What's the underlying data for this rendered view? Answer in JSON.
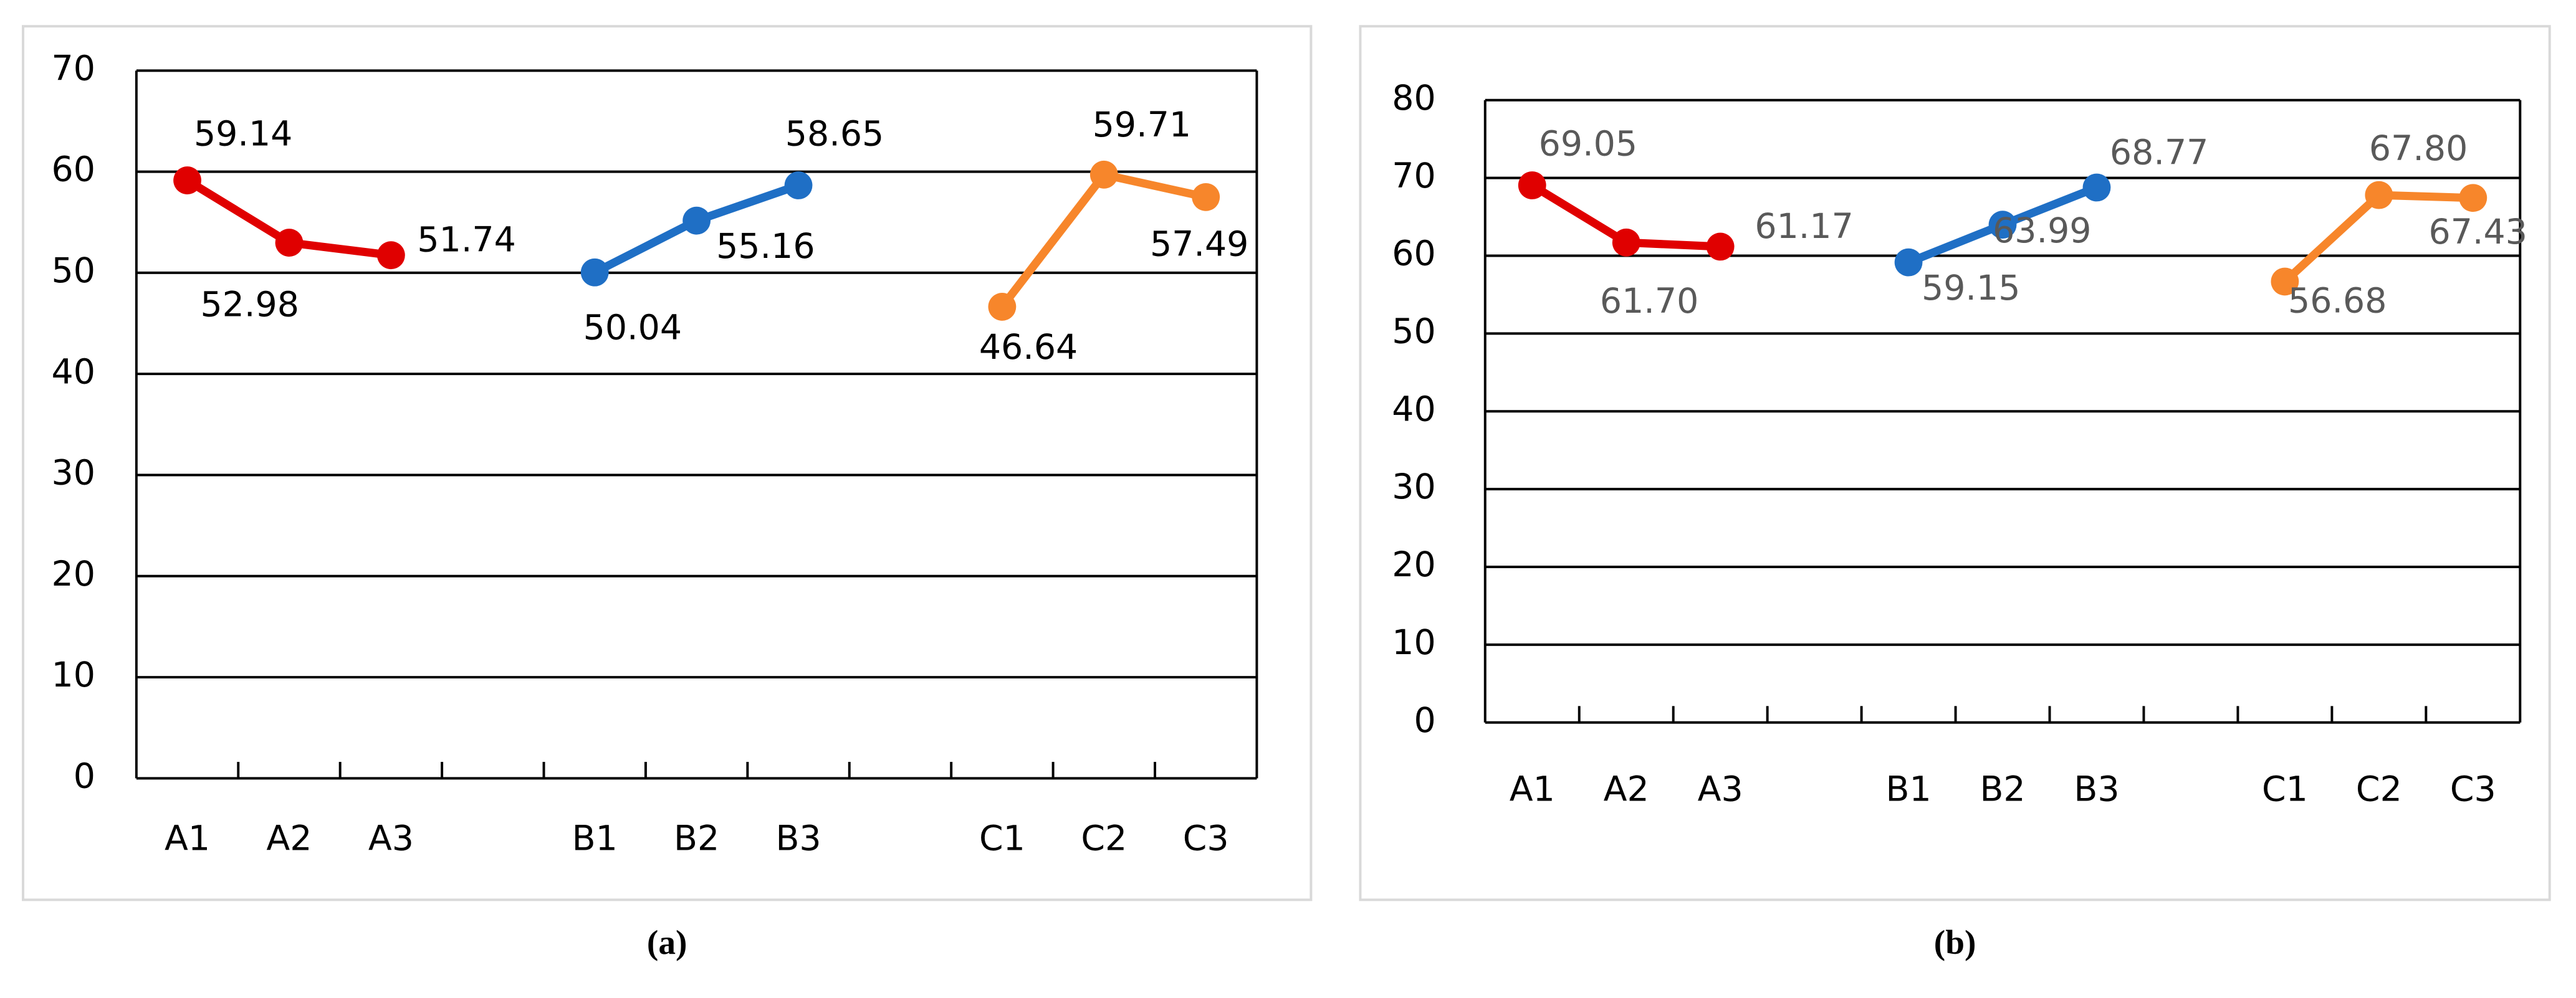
{
  "chart_data": [
    {
      "type": "line",
      "caption": "(a)",
      "categories": [
        "A1",
        "A2",
        "A3",
        null,
        "B1",
        "B2",
        "B3",
        null,
        "C1",
        "C2",
        "C3"
      ],
      "series": [
        {
          "color": "#e00000",
          "values": [
            59.14,
            52.98,
            51.74,
            null,
            null,
            null,
            null,
            null,
            null,
            null,
            null
          ]
        },
        {
          "color": "#1f6fc5",
          "values": [
            null,
            null,
            null,
            null,
            50.04,
            55.16,
            58.65,
            null,
            null,
            null,
            null
          ]
        },
        {
          "color": "#f7862b",
          "values": [
            null,
            null,
            null,
            null,
            null,
            null,
            null,
            null,
            46.64,
            59.71,
            57.49
          ]
        }
      ],
      "ylim": [
        0,
        70
      ],
      "yticks": [
        0,
        10,
        20,
        30,
        40,
        50,
        60,
        70
      ],
      "grid": true,
      "label_color": "#000000"
    },
    {
      "type": "line",
      "caption": "(b)",
      "categories": [
        "A1",
        "A2",
        "A3",
        null,
        "B1",
        "B2",
        "B3",
        null,
        "C1",
        "C2",
        "C3"
      ],
      "series": [
        {
          "color": "#e00000",
          "values": [
            69.05,
            61.7,
            61.17,
            null,
            null,
            null,
            null,
            null,
            null,
            null,
            null
          ],
          "value_labels": [
            "69.05",
            "61.70",
            "61.17",
            null,
            null,
            null,
            null,
            null,
            null,
            null,
            null
          ]
        },
        {
          "color": "#1f6fc5",
          "values": [
            null,
            null,
            null,
            null,
            59.15,
            63.99,
            68.77,
            null,
            null,
            null,
            null
          ],
          "value_labels": [
            null,
            null,
            null,
            null,
            "59.15",
            "63.99",
            "68.77",
            null,
            null,
            null,
            null
          ]
        },
        {
          "color": "#f7862b",
          "values": [
            null,
            null,
            null,
            null,
            null,
            null,
            null,
            null,
            56.68,
            67.8,
            67.43
          ],
          "value_labels": [
            null,
            null,
            null,
            null,
            null,
            null,
            null,
            null,
            "56.68",
            "67.80",
            "67.43"
          ]
        }
      ],
      "ylim": [
        0,
        80
      ],
      "yticks": [
        0,
        10,
        20,
        30,
        40,
        50,
        60,
        70,
        80
      ],
      "grid": true,
      "label_color": "#595959"
    }
  ]
}
